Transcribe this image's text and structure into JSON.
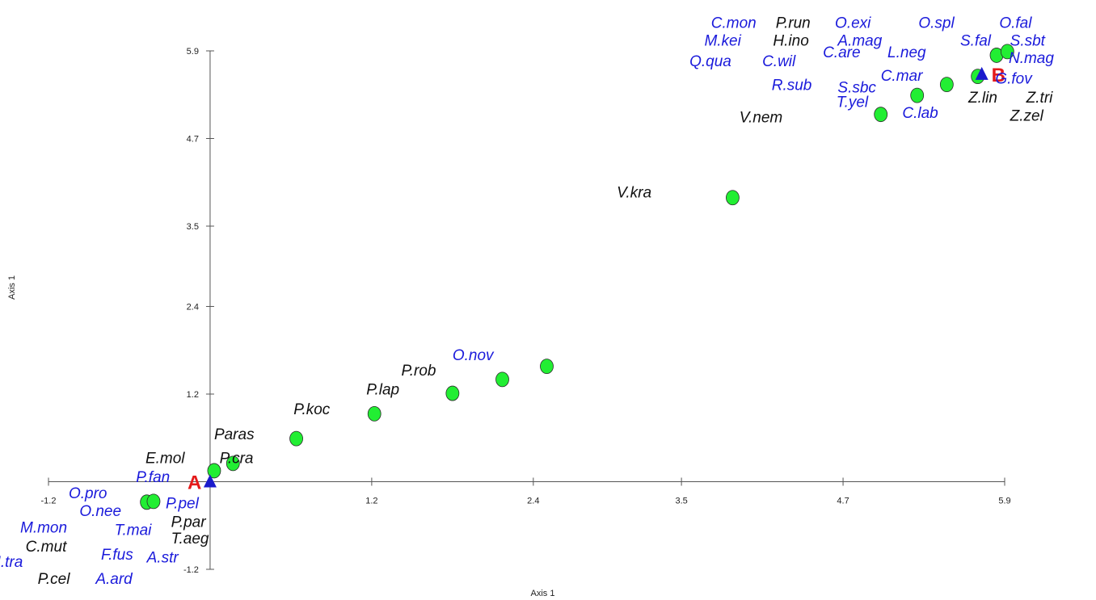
{
  "chart_data": {
    "type": "scatter",
    "xlabel": "Axis 1",
    "ylabel": "Axis 1",
    "xlim": [
      -1.2,
      5.9
    ],
    "ylim": [
      -1.2,
      5.9
    ],
    "x_ticks": [
      "-1.2",
      "1.2",
      "2.4",
      "3.5",
      "4.7",
      "5.9"
    ],
    "x_tick_values": [
      -1.2,
      1.2,
      2.4,
      3.5,
      4.7,
      5.9
    ],
    "y_ticks": [
      "-1.2",
      "1.2",
      "2.4",
      "3.5",
      "4.7",
      "5.9"
    ],
    "y_tick_values": [
      -1.2,
      1.2,
      2.4,
      3.5,
      4.7,
      5.9
    ],
    "grid": false,
    "point_color": "#22ee33",
    "label_colors": {
      "blue": "#1a1adb",
      "black": "#111111"
    },
    "centroid_color": "#1a1acc",
    "centroid_label_color": "#e41a1a",
    "points": [
      {
        "x": -0.47,
        "y": -0.28
      },
      {
        "x": -0.42,
        "y": -0.27
      },
      {
        "x": 0.03,
        "y": 0.15
      },
      {
        "x": 0.17,
        "y": 0.25
      },
      {
        "x": 0.64,
        "y": 0.59
      },
      {
        "x": 1.22,
        "y": 0.93
      },
      {
        "x": 1.8,
        "y": 1.21
      },
      {
        "x": 2.17,
        "y": 1.4
      },
      {
        "x": 2.5,
        "y": 1.58
      },
      {
        "x": 3.88,
        "y": 3.89
      },
      {
        "x": 4.98,
        "y": 5.03
      },
      {
        "x": 5.25,
        "y": 5.29
      },
      {
        "x": 5.47,
        "y": 5.44
      },
      {
        "x": 5.7,
        "y": 5.55
      },
      {
        "x": 5.84,
        "y": 5.84
      },
      {
        "x": 5.92,
        "y": 5.89
      }
    ],
    "centroids": [
      {
        "label": "A",
        "x": 0.0,
        "y": 0.0
      },
      {
        "label": "B",
        "x": 5.73,
        "y": 5.58
      }
    ],
    "labels": [
      {
        "text": "O.pro",
        "x": -1.05,
        "y": -0.15,
        "color": "blue"
      },
      {
        "text": "P.fan",
        "x": -0.55,
        "y": 0.07,
        "color": "blue"
      },
      {
        "text": "P.pel",
        "x": -0.33,
        "y": -0.29,
        "color": "blue"
      },
      {
        "text": "O.nee",
        "x": -0.97,
        "y": -0.39,
        "color": "blue"
      },
      {
        "text": "P.par",
        "x": -0.29,
        "y": -0.54,
        "color": "black"
      },
      {
        "text": "M.mon",
        "x": -1.41,
        "y": -0.62,
        "color": "blue"
      },
      {
        "text": "T.mai",
        "x": -0.71,
        "y": -0.65,
        "color": "blue"
      },
      {
        "text": "T.aeg",
        "x": -0.29,
        "y": -0.77,
        "color": "black"
      },
      {
        "text": "C.mut",
        "x": -1.37,
        "y": -0.88,
        "color": "black"
      },
      {
        "text": "F.fus",
        "x": -0.81,
        "y": -0.99,
        "color": "blue"
      },
      {
        "text": "A.str",
        "x": -0.47,
        "y": -1.03,
        "color": "blue"
      },
      {
        "text": "M.tra",
        "x": -1.65,
        "y": -1.09,
        "color": "blue"
      },
      {
        "text": "P.cel",
        "x": -1.28,
        "y": -1.32,
        "color": "black"
      },
      {
        "text": "A.ard",
        "x": -0.85,
        "y": -1.32,
        "color": "blue"
      },
      {
        "text": "E.mol",
        "x": -0.48,
        "y": 0.33,
        "color": "black"
      },
      {
        "text": "P.cra",
        "x": 0.07,
        "y": 0.33,
        "color": "black"
      },
      {
        "text": "Paras",
        "x": 0.03,
        "y": 0.66,
        "color": "black"
      },
      {
        "text": "P.koc",
        "x": 0.62,
        "y": 1.0,
        "color": "black"
      },
      {
        "text": "P.lap",
        "x": 1.16,
        "y": 1.27,
        "color": "black"
      },
      {
        "text": "P.rob",
        "x": 1.42,
        "y": 1.53,
        "color": "black"
      },
      {
        "text": "O.nov",
        "x": 1.8,
        "y": 1.74,
        "color": "blue"
      },
      {
        "text": "V.kra",
        "x": 3.02,
        "y": 3.97,
        "color": "black"
      },
      {
        "text": "V.nem",
        "x": 3.93,
        "y": 5.0,
        "color": "black"
      },
      {
        "text": "T.yel",
        "x": 4.65,
        "y": 5.21,
        "color": "blue"
      },
      {
        "text": "C.lab",
        "x": 5.14,
        "y": 5.06,
        "color": "blue"
      },
      {
        "text": "S.sbc",
        "x": 4.66,
        "y": 5.41,
        "color": "blue"
      },
      {
        "text": "R.sub",
        "x": 4.17,
        "y": 5.44,
        "color": "blue"
      },
      {
        "text": "C.mar",
        "x": 4.98,
        "y": 5.57,
        "color": "blue"
      },
      {
        "text": "Q.qua",
        "x": 3.56,
        "y": 5.77,
        "color": "blue"
      },
      {
        "text": "C.wil",
        "x": 4.1,
        "y": 5.77,
        "color": "blue"
      },
      {
        "text": "C.are",
        "x": 4.55,
        "y": 5.89,
        "color": "blue"
      },
      {
        "text": "L.neg",
        "x": 5.03,
        "y": 5.89,
        "color": "blue"
      },
      {
        "text": "M.kei",
        "x": 3.67,
        "y": 6.05,
        "color": "blue"
      },
      {
        "text": "H.ino",
        "x": 4.18,
        "y": 6.05,
        "color": "black"
      },
      {
        "text": "A.mag",
        "x": 4.66,
        "y": 6.05,
        "color": "blue"
      },
      {
        "text": "S.fal",
        "x": 5.57,
        "y": 6.05,
        "color": "blue"
      },
      {
        "text": "S.sbt",
        "x": 5.94,
        "y": 6.05,
        "color": "blue"
      },
      {
        "text": "C.mon",
        "x": 3.72,
        "y": 6.29,
        "color": "blue"
      },
      {
        "text": "P.run",
        "x": 4.2,
        "y": 6.29,
        "color": "black"
      },
      {
        "text": "O.exi",
        "x": 4.64,
        "y": 6.29,
        "color": "blue"
      },
      {
        "text": "O.spl",
        "x": 5.26,
        "y": 6.29,
        "color": "blue"
      },
      {
        "text": "O.fal",
        "x": 5.86,
        "y": 6.29,
        "color": "blue"
      },
      {
        "text": "N.mag",
        "x": 5.93,
        "y": 5.81,
        "color": "blue"
      },
      {
        "text": "G.fov",
        "x": 5.83,
        "y": 5.53,
        "color": "blue"
      },
      {
        "text": "Z.lin",
        "x": 5.63,
        "y": 5.27,
        "color": "black"
      },
      {
        "text": "Z.tri",
        "x": 6.06,
        "y": 5.27,
        "color": "black"
      },
      {
        "text": "Z.zel",
        "x": 5.94,
        "y": 5.02,
        "color": "black"
      }
    ]
  }
}
